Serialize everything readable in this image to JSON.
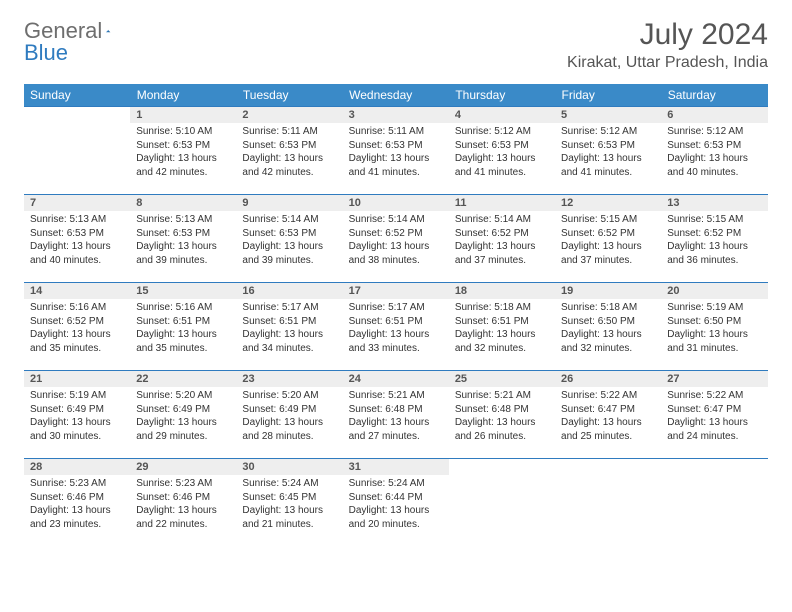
{
  "brand": {
    "part1": "General",
    "part2": "Blue"
  },
  "title": "July 2024",
  "location": "Kirakat, Uttar Pradesh, India",
  "weekdays": [
    "Sunday",
    "Monday",
    "Tuesday",
    "Wednesday",
    "Thursday",
    "Friday",
    "Saturday"
  ],
  "colors": {
    "header_bg": "#3a8ac8",
    "header_text": "#ffffff",
    "daynum_bg": "#eeeeee",
    "rule": "#2f7bbf",
    "title_color": "#555555",
    "body_text": "#333333",
    "logo_gray": "#6e6e6e",
    "logo_blue": "#2f7bbf"
  },
  "fonts": {
    "title_size_pt": 22,
    "location_size_pt": 12,
    "weekday_size_pt": 9,
    "daynum_size_pt": 8,
    "detail_size_pt": 7.5
  },
  "layout": {
    "cols": 7,
    "rows": 5,
    "first_weekday_index": 1
  },
  "days": [
    {
      "n": 1,
      "sunrise": "5:10 AM",
      "sunset": "6:53 PM",
      "daylight": "13 hours and 42 minutes."
    },
    {
      "n": 2,
      "sunrise": "5:11 AM",
      "sunset": "6:53 PM",
      "daylight": "13 hours and 42 minutes."
    },
    {
      "n": 3,
      "sunrise": "5:11 AM",
      "sunset": "6:53 PM",
      "daylight": "13 hours and 41 minutes."
    },
    {
      "n": 4,
      "sunrise": "5:12 AM",
      "sunset": "6:53 PM",
      "daylight": "13 hours and 41 minutes."
    },
    {
      "n": 5,
      "sunrise": "5:12 AM",
      "sunset": "6:53 PM",
      "daylight": "13 hours and 41 minutes."
    },
    {
      "n": 6,
      "sunrise": "5:12 AM",
      "sunset": "6:53 PM",
      "daylight": "13 hours and 40 minutes."
    },
    {
      "n": 7,
      "sunrise": "5:13 AM",
      "sunset": "6:53 PM",
      "daylight": "13 hours and 40 minutes."
    },
    {
      "n": 8,
      "sunrise": "5:13 AM",
      "sunset": "6:53 PM",
      "daylight": "13 hours and 39 minutes."
    },
    {
      "n": 9,
      "sunrise": "5:14 AM",
      "sunset": "6:53 PM",
      "daylight": "13 hours and 39 minutes."
    },
    {
      "n": 10,
      "sunrise": "5:14 AM",
      "sunset": "6:52 PM",
      "daylight": "13 hours and 38 minutes."
    },
    {
      "n": 11,
      "sunrise": "5:14 AM",
      "sunset": "6:52 PM",
      "daylight": "13 hours and 37 minutes."
    },
    {
      "n": 12,
      "sunrise": "5:15 AM",
      "sunset": "6:52 PM",
      "daylight": "13 hours and 37 minutes."
    },
    {
      "n": 13,
      "sunrise": "5:15 AM",
      "sunset": "6:52 PM",
      "daylight": "13 hours and 36 minutes."
    },
    {
      "n": 14,
      "sunrise": "5:16 AM",
      "sunset": "6:52 PM",
      "daylight": "13 hours and 35 minutes."
    },
    {
      "n": 15,
      "sunrise": "5:16 AM",
      "sunset": "6:51 PM",
      "daylight": "13 hours and 35 minutes."
    },
    {
      "n": 16,
      "sunrise": "5:17 AM",
      "sunset": "6:51 PM",
      "daylight": "13 hours and 34 minutes."
    },
    {
      "n": 17,
      "sunrise": "5:17 AM",
      "sunset": "6:51 PM",
      "daylight": "13 hours and 33 minutes."
    },
    {
      "n": 18,
      "sunrise": "5:18 AM",
      "sunset": "6:51 PM",
      "daylight": "13 hours and 32 minutes."
    },
    {
      "n": 19,
      "sunrise": "5:18 AM",
      "sunset": "6:50 PM",
      "daylight": "13 hours and 32 minutes."
    },
    {
      "n": 20,
      "sunrise": "5:19 AM",
      "sunset": "6:50 PM",
      "daylight": "13 hours and 31 minutes."
    },
    {
      "n": 21,
      "sunrise": "5:19 AM",
      "sunset": "6:49 PM",
      "daylight": "13 hours and 30 minutes."
    },
    {
      "n": 22,
      "sunrise": "5:20 AM",
      "sunset": "6:49 PM",
      "daylight": "13 hours and 29 minutes."
    },
    {
      "n": 23,
      "sunrise": "5:20 AM",
      "sunset": "6:49 PM",
      "daylight": "13 hours and 28 minutes."
    },
    {
      "n": 24,
      "sunrise": "5:21 AM",
      "sunset": "6:48 PM",
      "daylight": "13 hours and 27 minutes."
    },
    {
      "n": 25,
      "sunrise": "5:21 AM",
      "sunset": "6:48 PM",
      "daylight": "13 hours and 26 minutes."
    },
    {
      "n": 26,
      "sunrise": "5:22 AM",
      "sunset": "6:47 PM",
      "daylight": "13 hours and 25 minutes."
    },
    {
      "n": 27,
      "sunrise": "5:22 AM",
      "sunset": "6:47 PM",
      "daylight": "13 hours and 24 minutes."
    },
    {
      "n": 28,
      "sunrise": "5:23 AM",
      "sunset": "6:46 PM",
      "daylight": "13 hours and 23 minutes."
    },
    {
      "n": 29,
      "sunrise": "5:23 AM",
      "sunset": "6:46 PM",
      "daylight": "13 hours and 22 minutes."
    },
    {
      "n": 30,
      "sunrise": "5:24 AM",
      "sunset": "6:45 PM",
      "daylight": "13 hours and 21 minutes."
    },
    {
      "n": 31,
      "sunrise": "5:24 AM",
      "sunset": "6:44 PM",
      "daylight": "13 hours and 20 minutes."
    }
  ],
  "labels": {
    "sunrise": "Sunrise:",
    "sunset": "Sunset:",
    "daylight": "Daylight:"
  }
}
